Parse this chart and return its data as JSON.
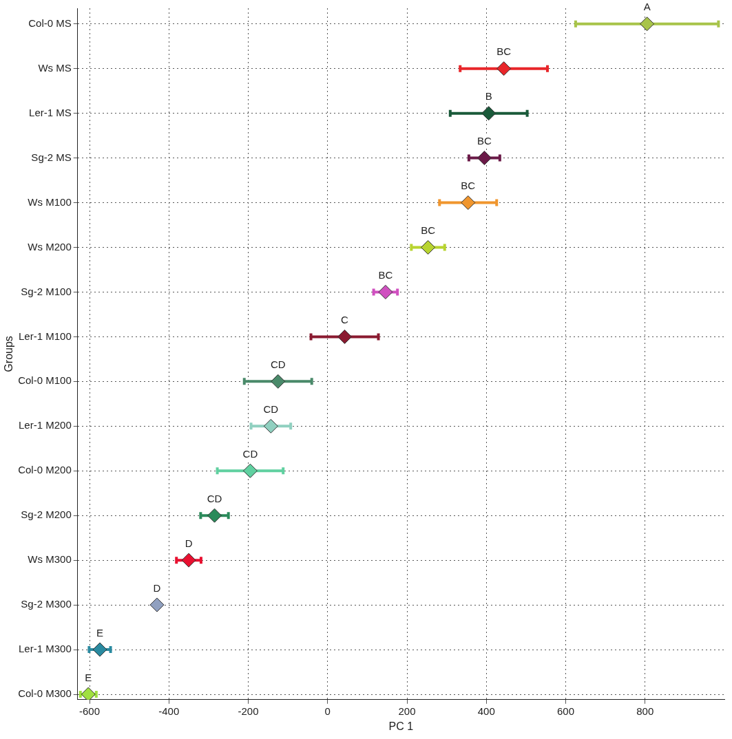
{
  "chart_data": {
    "type": "scatter",
    "orientation": "horizontal",
    "xlabel": "PC 1",
    "ylabel": "Groups",
    "categories": [
      "Col-0 MS",
      "Ws MS",
      "Ler-1 MS",
      "Sg-2 MS",
      "Ws M100",
      "Ws M200",
      "Sg-2 M100",
      "Ler-1 M100",
      "Col-0 M100",
      "Ler-1 M200",
      "Col-0 M200",
      "Sg-2 M200",
      "Ws M300",
      "Sg-2 M300",
      "Ler-1 M300",
      "Col-0 M300"
    ],
    "values": [
      805,
      444,
      406,
      395,
      354,
      253,
      146,
      43,
      -125,
      -143,
      -195,
      -285,
      -350,
      -430,
      -574,
      -603
    ],
    "errors": [
      180,
      110,
      97,
      39,
      72,
      42,
      30,
      85,
      85,
      50,
      83,
      35,
      31,
      null,
      27,
      20
    ],
    "colors": [
      "#a8c44a",
      "#e8262a",
      "#1a5a3a",
      "#6b1a48",
      "#f0962e",
      "#b8d430",
      "#d050c0",
      "#8a1a30",
      "#4a8a6a",
      "#90d0c0",
      "#60d0a0",
      "#2a8a5a",
      "#e81030",
      "#90a0c0",
      "#2a8aa0",
      "#a0e040"
    ],
    "xlim": [
      -630,
      1000
    ],
    "xticks": [
      -600,
      -400,
      -200,
      0,
      200,
      400,
      600,
      800
    ],
    "marker": "diamond",
    "grid": true,
    "legend": false,
    "annotations": [
      {
        "text": "A",
        "x": 805,
        "y": "Col-0 MS"
      },
      {
        "text": "BC",
        "x": 444,
        "y": "Ws MS"
      },
      {
        "text": "B",
        "x": 406,
        "y": "Ler-1 MS"
      },
      {
        "text": "BC",
        "x": 395,
        "y": "Sg-2 MS"
      },
      {
        "text": "BC",
        "x": 354,
        "y": "Ws M100"
      },
      {
        "text": "BC",
        "x": 253,
        "y": "Ws M200"
      },
      {
        "text": "BC",
        "x": 146,
        "y": "Sg-2 M100"
      },
      {
        "text": "C",
        "x": 43,
        "y": "Ler-1 M100"
      },
      {
        "text": "CD",
        "x": -125,
        "y": "Col-0 M100"
      },
      {
        "text": "CD",
        "x": -143,
        "y": "Ler-1 M200"
      },
      {
        "text": "CD",
        "x": -195,
        "y": "Col-0 M200"
      },
      {
        "text": "CD",
        "x": -285,
        "y": "Sg-2 M200"
      },
      {
        "text": "D",
        "x": -350,
        "y": "Ws M300"
      },
      {
        "text": "D",
        "x": -430,
        "y": "Sg-2 M300"
      },
      {
        "text": "E",
        "x": -574,
        "y": "Ler-1 M300"
      },
      {
        "text": "E",
        "x": -603,
        "y": "Col-0 M300"
      }
    ]
  }
}
